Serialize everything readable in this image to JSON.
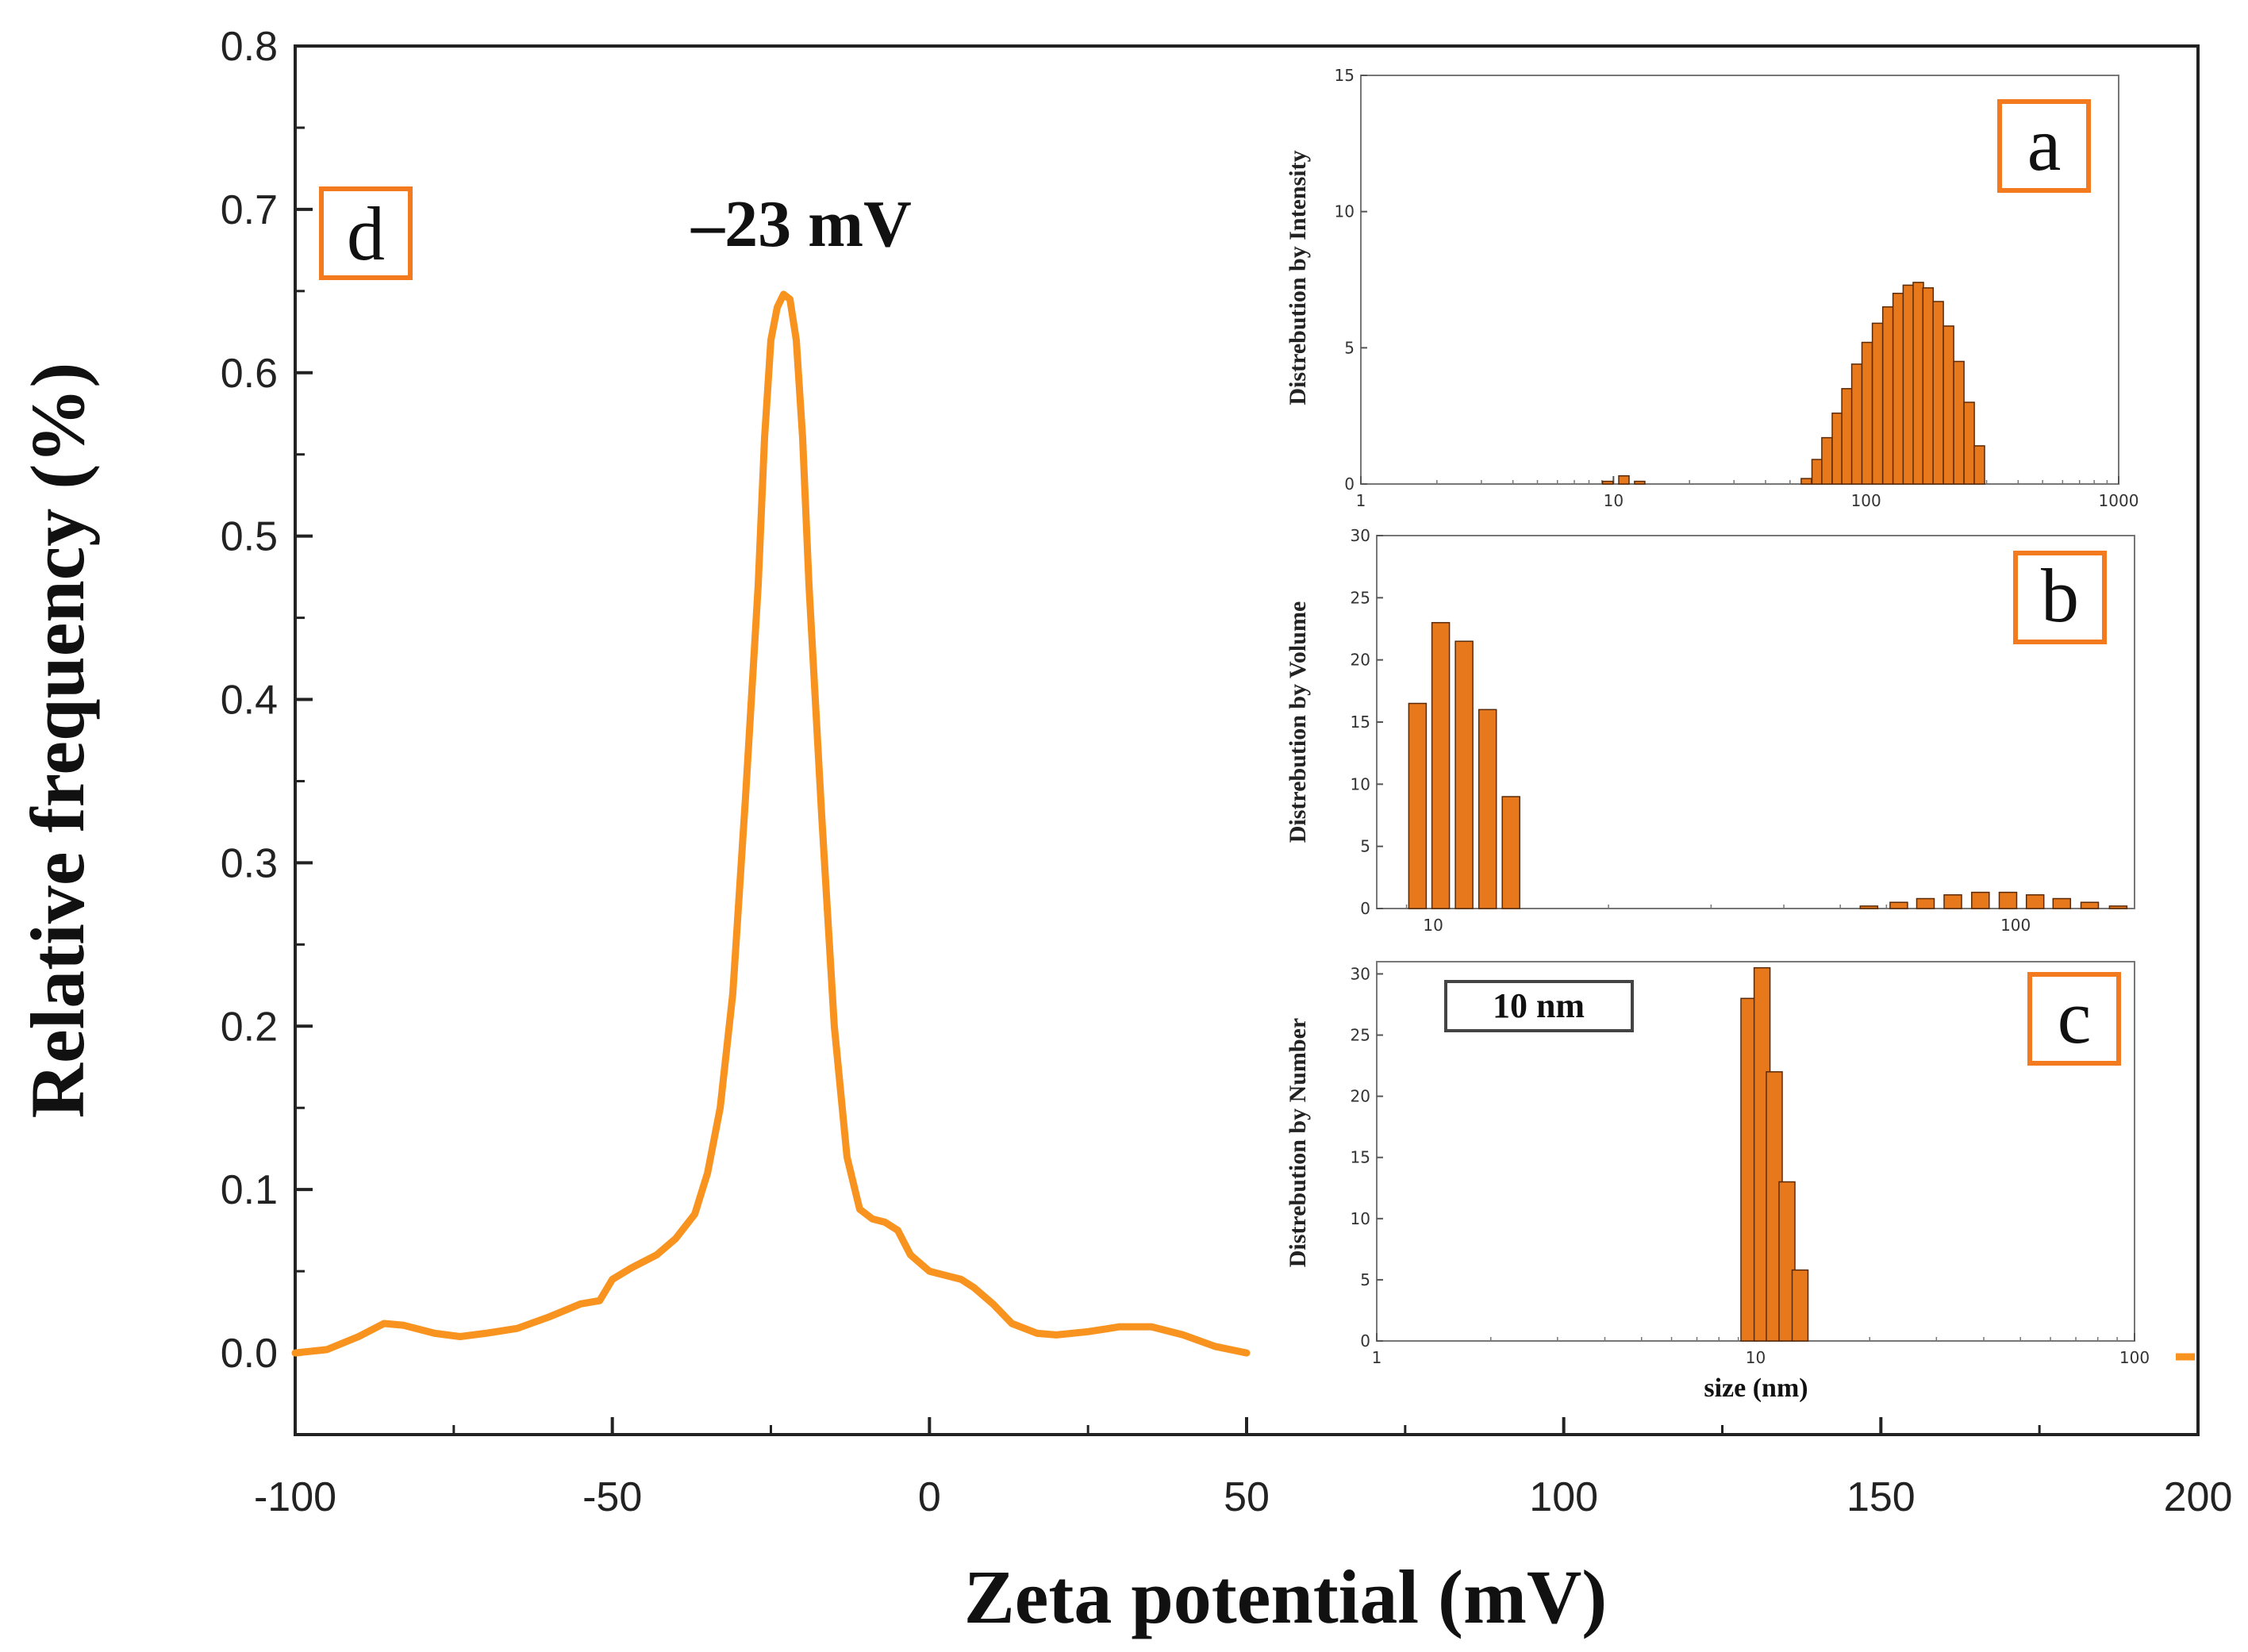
{
  "chart_data": [
    {
      "id": "d",
      "type": "line",
      "panel_label": "d",
      "xlabel": "Zeta potential (mV)",
      "ylabel": "Relative frequency (%)",
      "xlim": [
        -100,
        200
      ],
      "ylim": [
        -0.05,
        0.8
      ],
      "xticks": [
        -100,
        -50,
        0,
        50,
        100,
        150,
        200
      ],
      "xtick_labels": [
        "-100",
        "-50",
        "0",
        "50",
        "100",
        "150",
        "200"
      ],
      "yticks": [
        0.0,
        0.1,
        0.2,
        0.3,
        0.4,
        0.5,
        0.6,
        0.7,
        0.8
      ],
      "ytick_labels": [
        "0.0",
        "0.1",
        "0.2",
        "0.3",
        "0.4",
        "0.5",
        "0.6",
        "0.7",
        "0.8"
      ],
      "annotation": "–23 mV",
      "line_color": "#f7931e",
      "x": [
        -100,
        -95,
        -90,
        -86,
        -83,
        -78,
        -74,
        -70,
        -65,
        -60,
        -55,
        -52,
        -50,
        -47,
        -43,
        -40,
        -37,
        -35,
        -33,
        -31,
        -29,
        -27,
        -26,
        -25,
        -24,
        -23,
        -22,
        -21,
        -20,
        -19,
        -17,
        -15,
        -13,
        -11,
        -9,
        -7,
        -5,
        -3,
        0,
        3,
        5,
        7,
        10,
        13,
        17,
        20,
        25,
        30,
        35,
        40,
        45,
        50,
        198,
        200
      ],
      "y": [
        0.0,
        0.002,
        0.01,
        0.018,
        0.017,
        0.012,
        0.01,
        0.012,
        0.015,
        0.022,
        0.03,
        0.032,
        0.045,
        0.052,
        0.06,
        0.07,
        0.085,
        0.11,
        0.15,
        0.22,
        0.34,
        0.47,
        0.56,
        0.62,
        0.64,
        0.648,
        0.645,
        0.62,
        0.56,
        0.47,
        0.33,
        0.2,
        0.12,
        0.088,
        0.082,
        0.08,
        0.075,
        0.06,
        0.05,
        0.047,
        0.045,
        0.04,
        0.03,
        0.018,
        0.012,
        0.011,
        0.013,
        0.016,
        0.016,
        0.011,
        0.004,
        0.0,
        0.0,
        0.0
      ]
    },
    {
      "id": "a",
      "type": "bar",
      "panel_label": "a",
      "ylabel": "Distrebution by Intensity",
      "xscale": "log",
      "xlim": [
        1,
        1000
      ],
      "ylim": [
        0,
        15
      ],
      "xticks": [
        1,
        10,
        100,
        1000
      ],
      "xtick_labels": [
        "1",
        "10",
        "100",
        "1000"
      ],
      "yticks": [
        0,
        5,
        10,
        15
      ],
      "ytick_labels": [
        "0",
        "5",
        "10",
        "15"
      ],
      "x": [
        9.5,
        11,
        12.7,
        58,
        64,
        70,
        77,
        84,
        92,
        101,
        111,
        122,
        134,
        147,
        161,
        176,
        193,
        212,
        233,
        256,
        281
      ],
      "values": [
        0.1,
        0.3,
        0.1,
        0.2,
        0.9,
        1.7,
        2.6,
        3.5,
        4.4,
        5.2,
        5.9,
        6.5,
        7.0,
        7.3,
        7.4,
        7.2,
        6.7,
        5.8,
        4.5,
        3.0,
        1.4
      ]
    },
    {
      "id": "b",
      "type": "bar",
      "panel_label": "b",
      "ylabel": "Distrebution by Volume",
      "xscale": "log",
      "xlim": [
        8,
        160
      ],
      "ylim": [
        0,
        30
      ],
      "xticks": [
        10,
        100
      ],
      "xtick_labels": [
        "10",
        "100"
      ],
      "yticks": [
        0,
        5,
        10,
        15,
        20,
        25,
        30
      ],
      "ytick_labels": [
        "0",
        "5",
        "10",
        "15",
        "20",
        "25",
        "30"
      ],
      "x": [
        9.4,
        10.3,
        11.3,
        12.4,
        13.6,
        56,
        63,
        70,
        78,
        87,
        97,
        108,
        120,
        134,
        150
      ],
      "values": [
        16.5,
        23.0,
        21.5,
        16.0,
        9.0,
        0.2,
        0.5,
        0.8,
        1.1,
        1.3,
        1.3,
        1.1,
        0.8,
        0.5,
        0.2
      ]
    },
    {
      "id": "c",
      "type": "bar",
      "panel_label": "c",
      "ylabel": "Distrebution by Number",
      "xlabel": "size (nm)",
      "annotation": "10 nm",
      "xscale": "log",
      "xlim": [
        1,
        100
      ],
      "ylim": [
        0,
        31
      ],
      "xticks": [
        1,
        10,
        100
      ],
      "xtick_labels": [
        "1",
        "10",
        "100"
      ],
      "yticks": [
        0,
        5,
        10,
        15,
        20,
        25,
        30
      ],
      "ytick_labels": [
        "0",
        "5",
        "10",
        "15",
        "20",
        "25",
        "30"
      ],
      "x": [
        9.6,
        10.4,
        11.2,
        12.1,
        13.1
      ],
      "values": [
        28.0,
        30.5,
        22.0,
        13.0,
        5.8
      ]
    }
  ],
  "colors": {
    "accent": "#f7931e",
    "bar_fill": "#e8781c",
    "bar_edge": "#5a2a08",
    "label_box": "#f47a20"
  }
}
